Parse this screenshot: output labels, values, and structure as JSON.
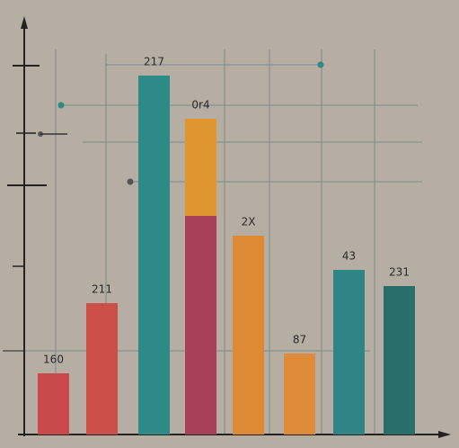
{
  "chart_data": {
    "type": "bar",
    "categories": [
      null,
      null,
      null,
      null,
      null,
      null,
      null,
      null
    ],
    "series": [
      {
        "colors": [
          "#c9484a",
          "#cc5048",
          "#2e8a86",
          "#a8405a",
          "#de8a34",
          "#e08b3a",
          "#2e8583",
          "#2a6e6c"
        ],
        "values": [
          68,
          146,
          399,
          243,
          221,
          90,
          183,
          165
        ]
      },
      {
        "colors": [
          "#e0962f",
          "#e0962f",
          "#e0962f",
          "#e0962f",
          "#e0962f",
          "#e0962f",
          "#e0962f",
          "#e0962f"
        ],
        "values": [
          null,
          null,
          null,
          108,
          null,
          null,
          null,
          null
        ]
      }
    ],
    "annotations": [
      "160",
      "211",
      "217",
      "0r4",
      "2X",
      "87",
      "43",
      "231"
    ],
    "ylim": [
      0,
      420
    ]
  }
}
